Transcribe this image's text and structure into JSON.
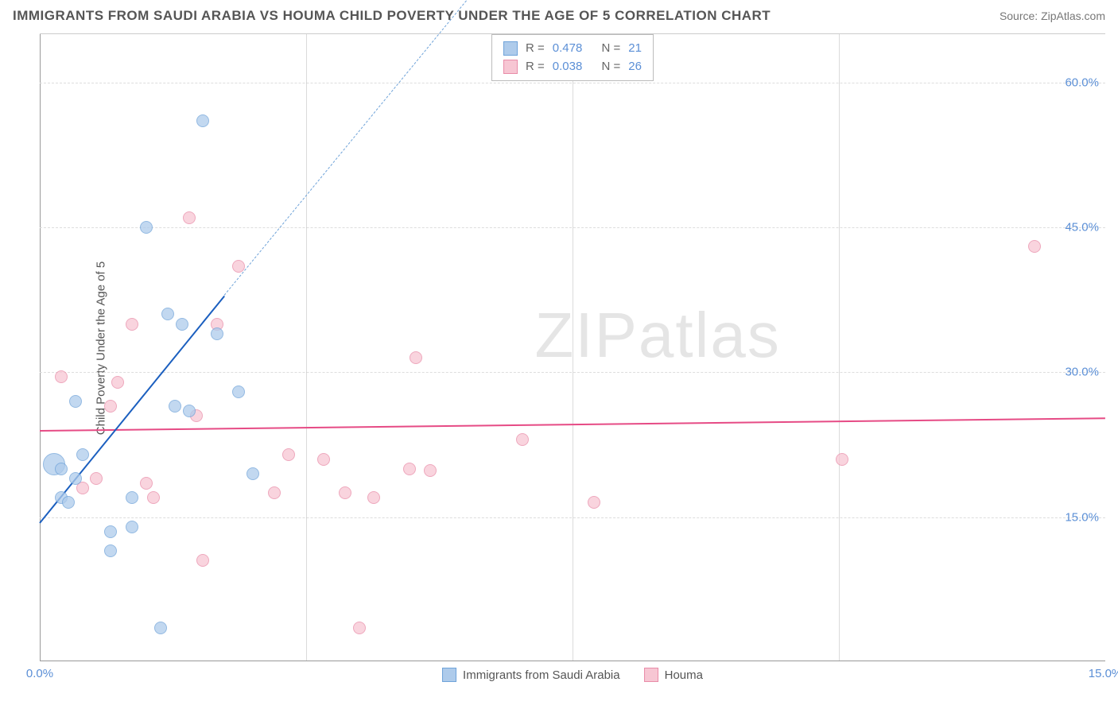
{
  "title": "IMMIGRANTS FROM SAUDI ARABIA VS HOUMA CHILD POVERTY UNDER THE AGE OF 5 CORRELATION CHART",
  "source": "Source: ZipAtlas.com",
  "y_axis_label": "Child Poverty Under the Age of 5",
  "watermark": "ZIPatlas",
  "chart": {
    "type": "scatter",
    "xlim": [
      0,
      15
    ],
    "ylim": [
      0,
      65
    ],
    "x_ticks": [
      0.0,
      15.0
    ],
    "x_tick_labels": [
      "0.0%",
      "15.0%"
    ],
    "y_ticks": [
      15.0,
      30.0,
      45.0,
      60.0
    ],
    "y_tick_labels": [
      "15.0%",
      "30.0%",
      "45.0%",
      "60.0%"
    ],
    "v_grid_at": [
      3.75,
      7.5,
      11.25
    ],
    "background_color": "#ffffff",
    "grid_color": "#dddddd",
    "axis_color": "#999999",
    "tick_label_color": "#5b8fd6",
    "title_fontsize": 17,
    "label_fontsize": 15
  },
  "series": {
    "a": {
      "label": "Immigrants from Saudi Arabia",
      "fill": "#aecbeb",
      "stroke": "#6fa3d9",
      "trend_color": "#1b5fbf",
      "R": "0.478",
      "N": "21",
      "trend": {
        "x1": 0.0,
        "y1": 14.5,
        "x2": 2.6,
        "y2": 38.0,
        "dash_to_x": 6.4,
        "dash_to_y": 72.0
      },
      "points": [
        {
          "x": 2.3,
          "y": 56.0,
          "r": 8
        },
        {
          "x": 1.5,
          "y": 45.0,
          "r": 8
        },
        {
          "x": 1.8,
          "y": 36.0,
          "r": 8
        },
        {
          "x": 2.0,
          "y": 35.0,
          "r": 8
        },
        {
          "x": 2.5,
          "y": 34.0,
          "r": 8
        },
        {
          "x": 2.8,
          "y": 28.0,
          "r": 8
        },
        {
          "x": 1.9,
          "y": 26.5,
          "r": 8
        },
        {
          "x": 2.1,
          "y": 26.0,
          "r": 8
        },
        {
          "x": 0.5,
          "y": 27.0,
          "r": 8
        },
        {
          "x": 0.2,
          "y": 20.5,
          "r": 14
        },
        {
          "x": 0.3,
          "y": 20.0,
          "r": 8
        },
        {
          "x": 0.5,
          "y": 19.0,
          "r": 8
        },
        {
          "x": 0.3,
          "y": 17.0,
          "r": 8
        },
        {
          "x": 0.4,
          "y": 16.5,
          "r": 8
        },
        {
          "x": 1.3,
          "y": 17.0,
          "r": 8
        },
        {
          "x": 3.0,
          "y": 19.5,
          "r": 8
        },
        {
          "x": 1.0,
          "y": 13.5,
          "r": 8
        },
        {
          "x": 1.3,
          "y": 14.0,
          "r": 8
        },
        {
          "x": 1.0,
          "y": 11.5,
          "r": 8
        },
        {
          "x": 1.7,
          "y": 3.5,
          "r": 8
        },
        {
          "x": 0.6,
          "y": 21.5,
          "r": 8
        }
      ]
    },
    "b": {
      "label": "Houma",
      "fill": "#f7c6d3",
      "stroke": "#e98ca8",
      "trend_color": "#e64b85",
      "R": "0.038",
      "N": "26",
      "trend": {
        "x1": 0.0,
        "y1": 24.0,
        "x2": 15.0,
        "y2": 25.3
      },
      "points": [
        {
          "x": 2.1,
          "y": 46.0,
          "r": 8
        },
        {
          "x": 14.0,
          "y": 43.0,
          "r": 8
        },
        {
          "x": 2.8,
          "y": 41.0,
          "r": 8
        },
        {
          "x": 1.3,
          "y": 35.0,
          "r": 8
        },
        {
          "x": 2.5,
          "y": 35.0,
          "r": 8
        },
        {
          "x": 5.3,
          "y": 31.5,
          "r": 8
        },
        {
          "x": 0.3,
          "y": 29.5,
          "r": 8
        },
        {
          "x": 1.1,
          "y": 29.0,
          "r": 8
        },
        {
          "x": 1.0,
          "y": 26.5,
          "r": 8
        },
        {
          "x": 2.2,
          "y": 25.5,
          "r": 8
        },
        {
          "x": 6.8,
          "y": 23.0,
          "r": 8
        },
        {
          "x": 3.5,
          "y": 21.5,
          "r": 8
        },
        {
          "x": 4.0,
          "y": 21.0,
          "r": 8
        },
        {
          "x": 5.2,
          "y": 20.0,
          "r": 8
        },
        {
          "x": 5.5,
          "y": 19.8,
          "r": 8
        },
        {
          "x": 11.3,
          "y": 21.0,
          "r": 8
        },
        {
          "x": 0.8,
          "y": 19.0,
          "r": 8
        },
        {
          "x": 1.5,
          "y": 18.5,
          "r": 8
        },
        {
          "x": 3.3,
          "y": 17.5,
          "r": 8
        },
        {
          "x": 4.3,
          "y": 17.5,
          "r": 8
        },
        {
          "x": 4.7,
          "y": 17.0,
          "r": 8
        },
        {
          "x": 7.8,
          "y": 16.5,
          "r": 8
        },
        {
          "x": 0.6,
          "y": 18.0,
          "r": 8
        },
        {
          "x": 2.3,
          "y": 10.5,
          "r": 8
        },
        {
          "x": 4.5,
          "y": 3.5,
          "r": 8
        },
        {
          "x": 1.6,
          "y": 17.0,
          "r": 8
        }
      ]
    }
  },
  "legend_box": {
    "r_label": "R =",
    "n_label": "N ="
  }
}
